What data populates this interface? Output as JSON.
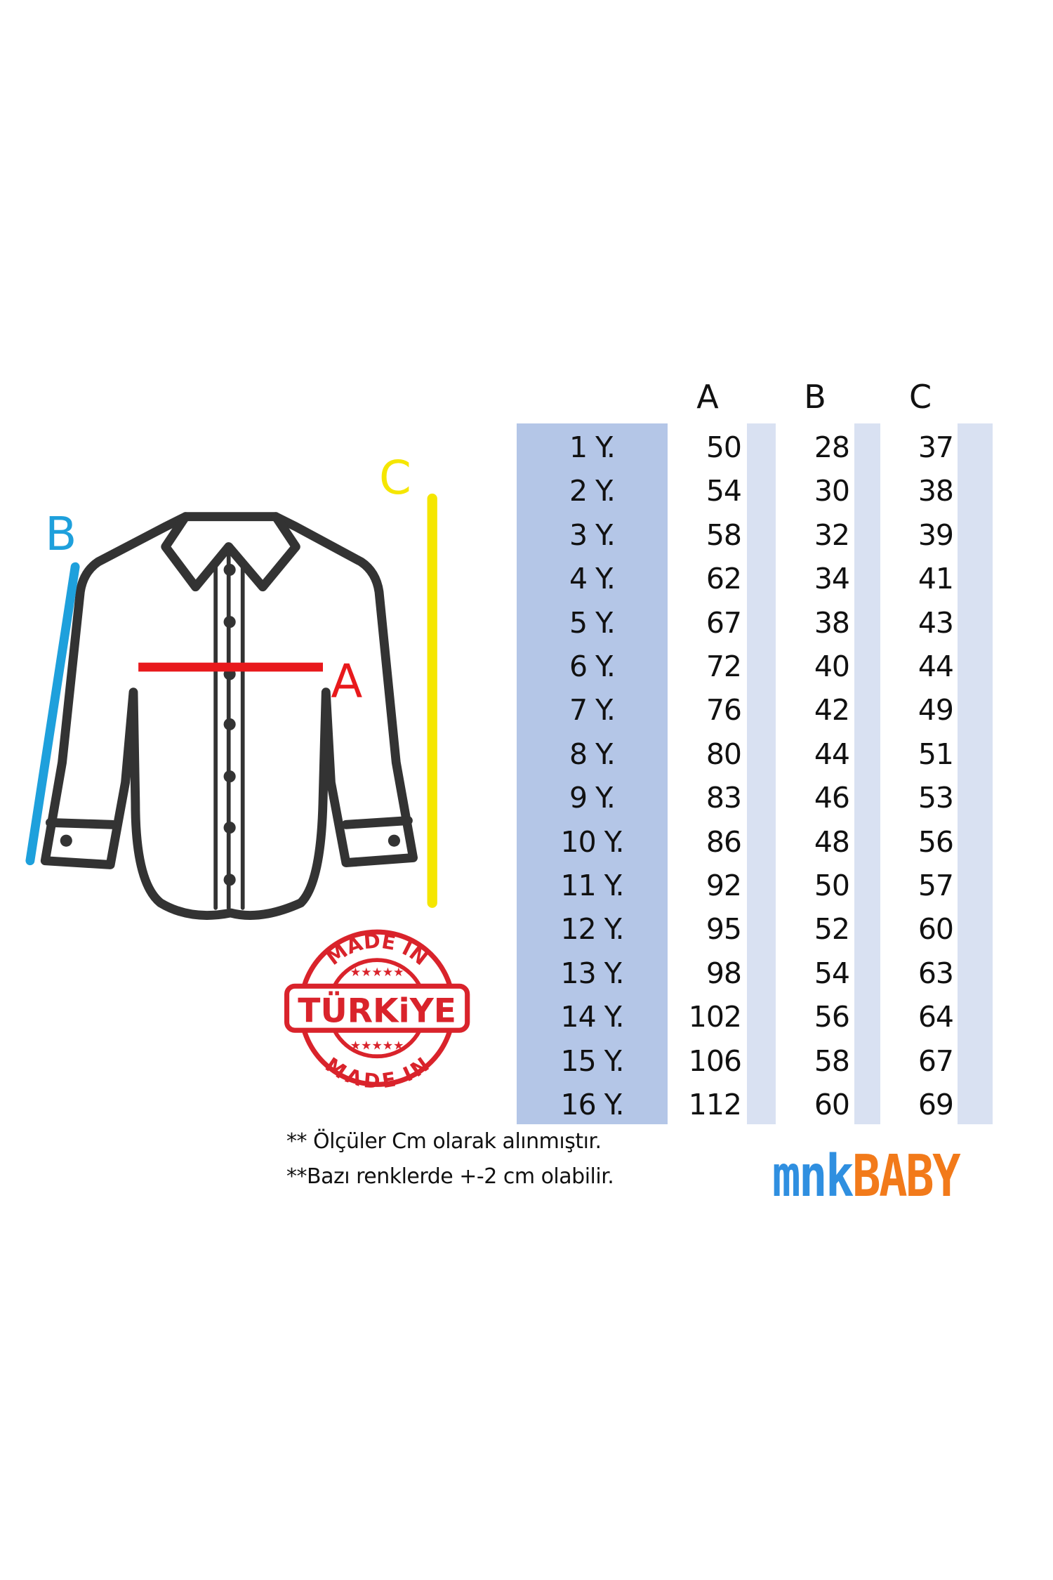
{
  "diagram": {
    "labels": {
      "a": "A",
      "b": "B",
      "c": "C"
    },
    "colors": {
      "a": "#e8191c",
      "b": "#1ea0dc",
      "c": "#f5e600",
      "shirt": "#333333"
    }
  },
  "badge": {
    "top_text": "MADE IN",
    "center_text": "TÜRKiYE",
    "bottom_text": "MADE IN",
    "color": "#d9232b"
  },
  "table": {
    "headers": [
      "A",
      "B",
      "C"
    ],
    "rows": [
      {
        "size": "1 Y.",
        "a": "50",
        "b": "28",
        "c": "37"
      },
      {
        "size": "2 Y.",
        "a": "54",
        "b": "30",
        "c": "38"
      },
      {
        "size": "3 Y.",
        "a": "58",
        "b": "32",
        "c": "39"
      },
      {
        "size": "4 Y.",
        "a": "62",
        "b": "34",
        "c": "41"
      },
      {
        "size": "5 Y.",
        "a": "67",
        "b": "38",
        "c": "43"
      },
      {
        "size": "6 Y.",
        "a": "72",
        "b": "40",
        "c": "44"
      },
      {
        "size": "7 Y.",
        "a": "76",
        "b": "42",
        "c": "49"
      },
      {
        "size": "8 Y.",
        "a": "80",
        "b": "44",
        "c": "51"
      },
      {
        "size": "9 Y.",
        "a": "83",
        "b": "46",
        "c": "53"
      },
      {
        "size": "10 Y.",
        "a": "86",
        "b": "48",
        "c": "56"
      },
      {
        "size": "11 Y.",
        "a": "92",
        "b": "50",
        "c": "57"
      },
      {
        "size": "12 Y.",
        "a": "95",
        "b": "52",
        "c": "60"
      },
      {
        "size": "13 Y.",
        "a": "98",
        "b": "54",
        "c": "63"
      },
      {
        "size": "14 Y.",
        "a": "102",
        "b": "56",
        "c": "64"
      },
      {
        "size": "15 Y.",
        "a": "106",
        "b": "58",
        "c": "67"
      },
      {
        "size": "16 Y.",
        "a": "112",
        "b": "60",
        "c": "69"
      }
    ],
    "colors": {
      "size_column": "#b4c6e7",
      "stripe": "#d9e1f2"
    }
  },
  "notes": [
    "** Ölçüler Cm olarak alınmıştır.",
    "**Bazı renklerde +-2 cm olabilir."
  ],
  "logo": {
    "part1": "MNK",
    "part2": "BABY",
    "color1": "#2f8fe0",
    "color2": "#f27a1a"
  }
}
